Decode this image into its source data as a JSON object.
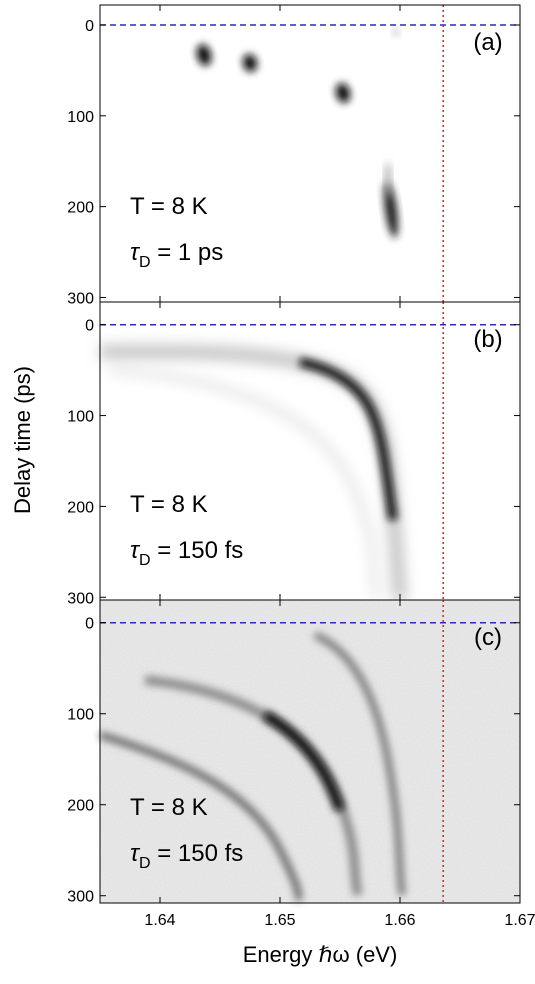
{
  "chart_data": [
    {
      "type": "image",
      "label": "(a)",
      "annotation": "T = 8 K",
      "tau": {
        "symbol": "τ",
        "subscript": "D",
        "text": " = 1 ps"
      },
      "xlim": [
        1.635,
        1.67
      ],
      "xticks": [
        1.64,
        1.65,
        1.66,
        1.67
      ],
      "ylim": [
        -22,
        305
      ],
      "yticks": [
        0,
        100,
        200,
        300
      ],
      "hline": {
        "value": 0,
        "color": "#2b2bb8"
      },
      "vline": {
        "value": 1.6636,
        "color": "#e02020"
      }
    },
    {
      "type": "image",
      "label": "(b)",
      "annotation": "T = 8 K",
      "tau": {
        "symbol": "τ",
        "subscript": "D",
        "text": " = 150 fs"
      },
      "ylabel": "Delay time (ps)",
      "xlim": [
        1.635,
        1.67
      ],
      "xticks": [
        1.64,
        1.65,
        1.66,
        1.67
      ],
      "ylim": [
        -25,
        303
      ],
      "yticks": [
        0,
        100,
        200,
        300
      ],
      "hline": {
        "value": 0,
        "color": "#2b2bb8"
      },
      "vline": {
        "value": 1.6636,
        "color": "#e02020"
      }
    },
    {
      "type": "image",
      "label": "(c)",
      "annotation": "T = 8 K",
      "tau": {
        "symbol": "τ",
        "subscript": "D",
        "text": " = 150 fs"
      },
      "xlabel": "Energy ℏω (eV)",
      "xlim": [
        1.635,
        1.67
      ],
      "xticks": [
        1.64,
        1.65,
        1.66,
        1.67
      ],
      "ylim": [
        -25,
        308
      ],
      "yticks": [
        0,
        100,
        200,
        300
      ],
      "hline": {
        "value": 0,
        "color": "#2b2bb8"
      },
      "vline": {
        "value": 1.6636,
        "color": "#e02020"
      }
    }
  ]
}
